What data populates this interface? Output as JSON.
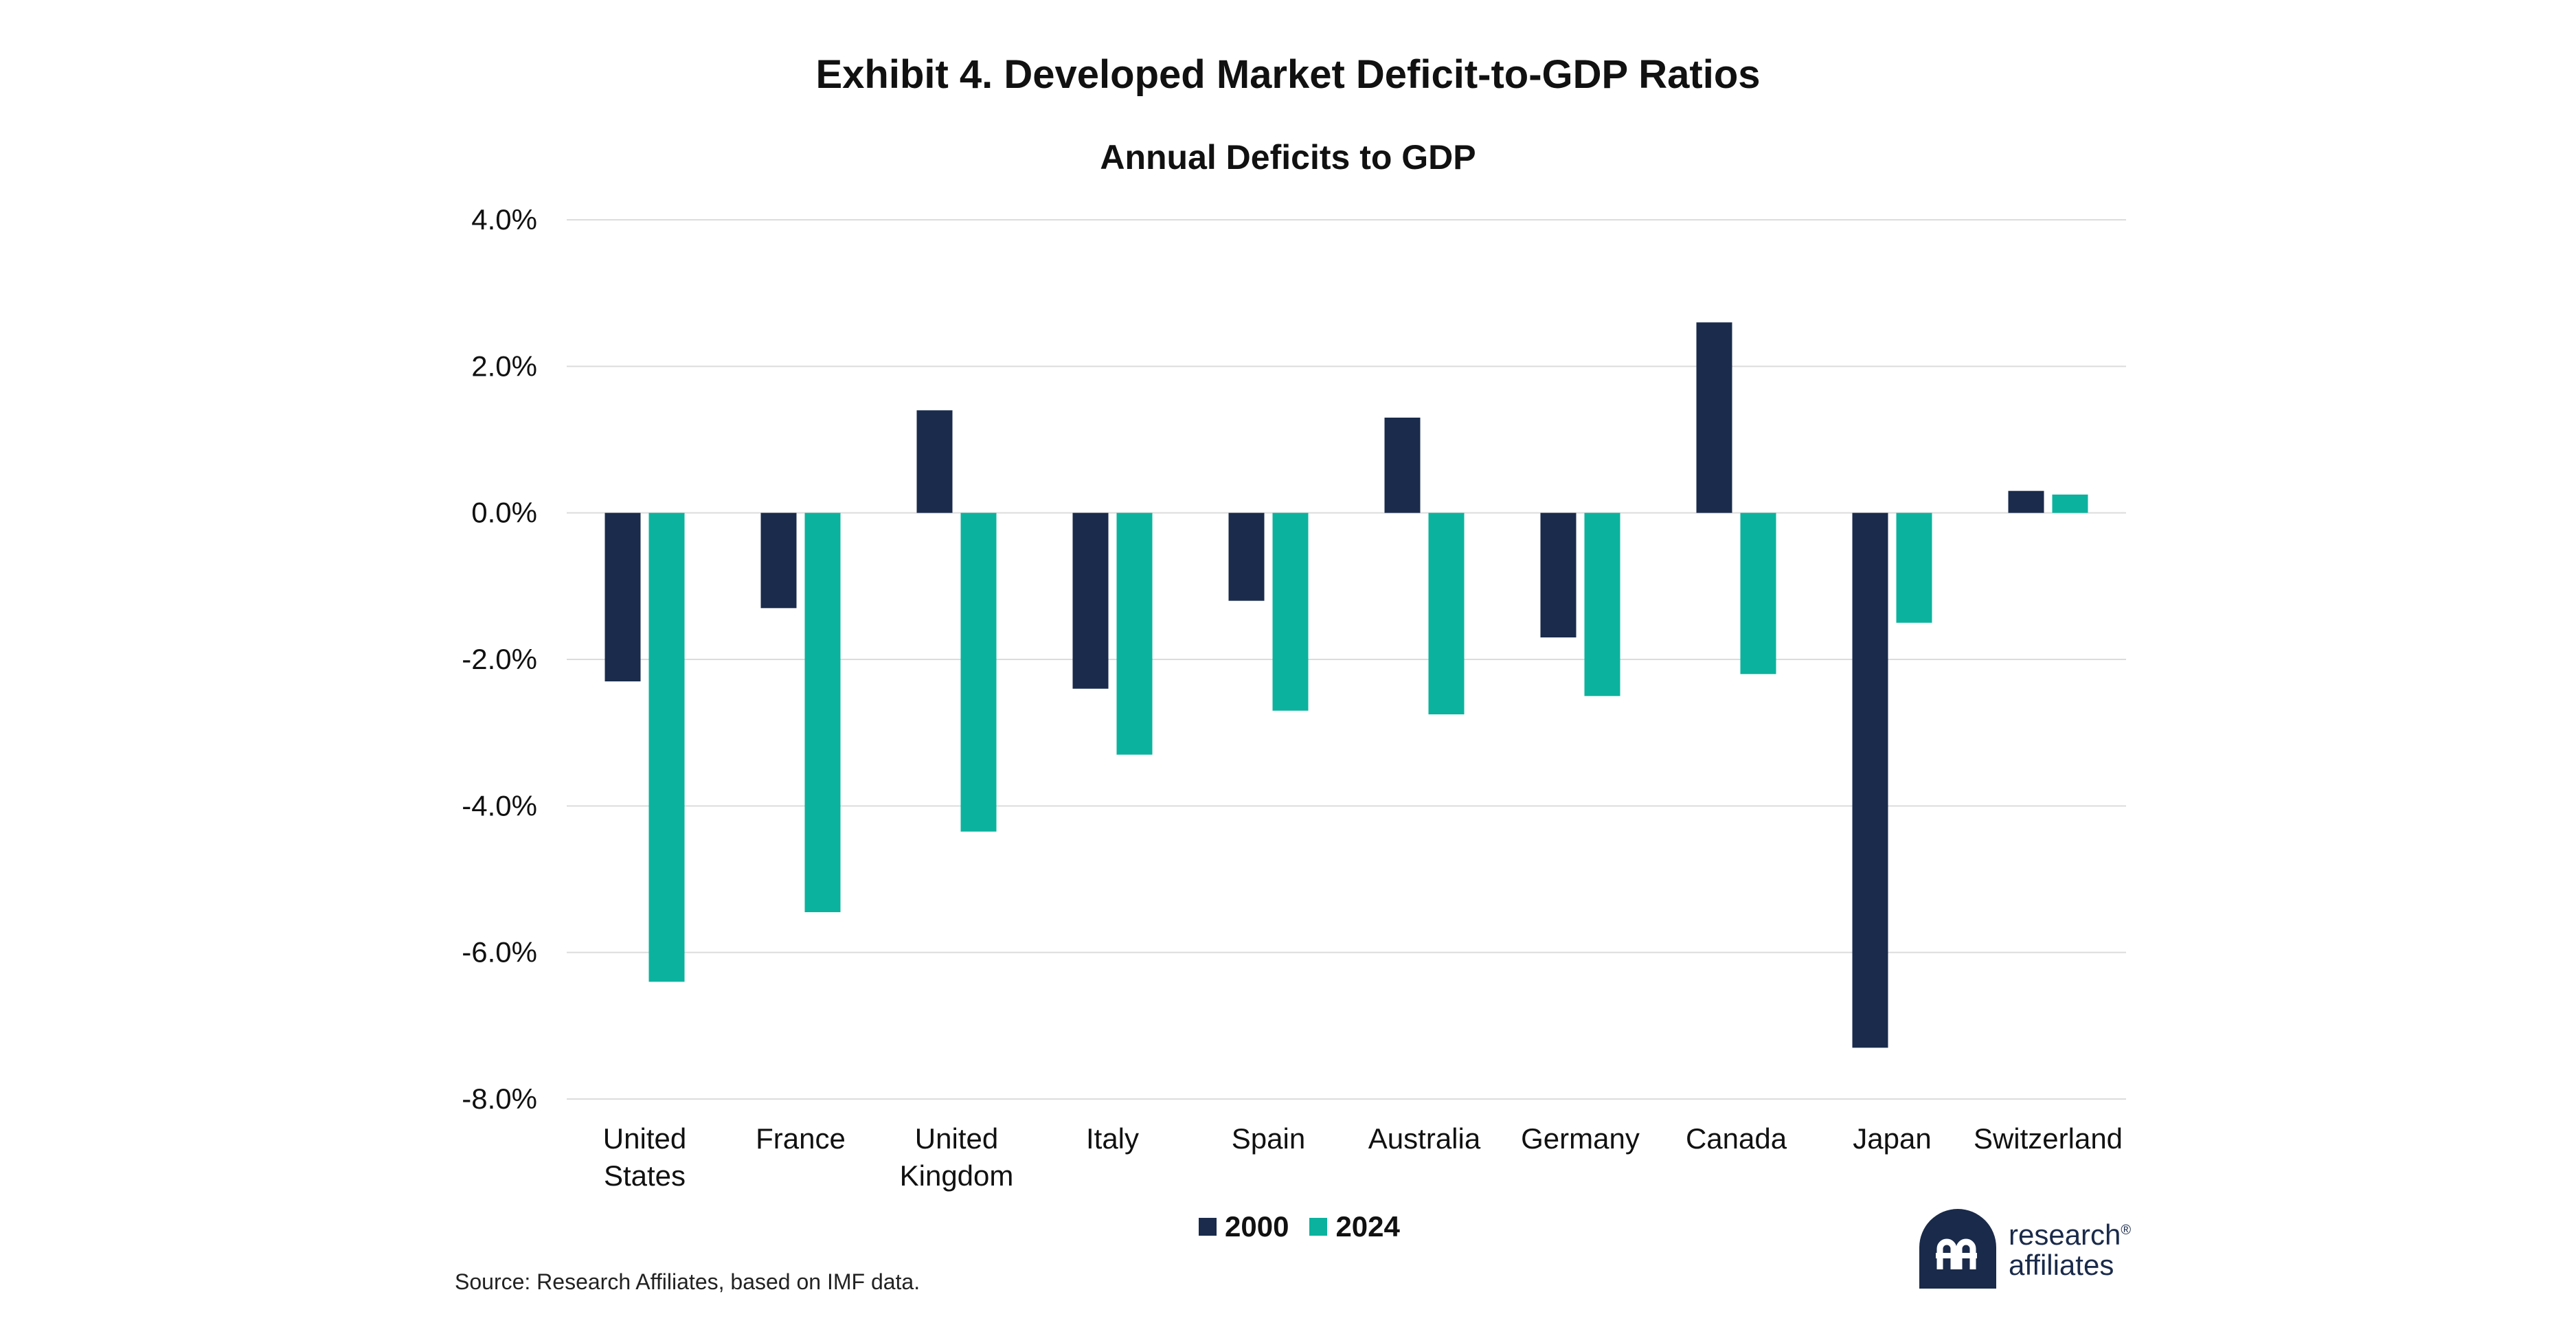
{
  "header": {
    "title": "Exhibit 4. Developed Market Deficit-to-GDP Ratios",
    "subtitle": "Annual Deficits to GDP"
  },
  "chart_data": {
    "type": "bar",
    "title": "Annual Deficits to GDP",
    "xlabel": "",
    "ylabel": "",
    "ylim": [
      -8.0,
      4.0
    ],
    "yticks": [
      4.0,
      2.0,
      0.0,
      -2.0,
      -4.0,
      -6.0,
      -8.0
    ],
    "ytick_labels": [
      "4.0%",
      "2.0%",
      "0.0%",
      "-2.0%",
      "-4.0%",
      "-6.0%",
      "-8.0%"
    ],
    "grid": true,
    "legend_position": "bottom-center",
    "categories": [
      [
        "United",
        "States"
      ],
      [
        "France"
      ],
      [
        "United",
        "Kingdom"
      ],
      [
        "Italy"
      ],
      [
        "Spain"
      ],
      [
        "Australia"
      ],
      [
        "Germany"
      ],
      [
        "Canada"
      ],
      [
        "Japan"
      ],
      [
        "Switzerland"
      ]
    ],
    "series": [
      {
        "name": "2000",
        "color": "#1a2b4c",
        "values": [
          -2.3,
          -1.3,
          1.4,
          -2.4,
          -1.2,
          1.3,
          -1.7,
          2.6,
          -7.3,
          0.3
        ]
      },
      {
        "name": "2024",
        "color": "#0bb39e",
        "values": [
          -6.4,
          -5.45,
          -4.35,
          -3.3,
          -2.7,
          -2.75,
          -2.5,
          -2.2,
          -1.5,
          0.25
        ]
      }
    ]
  },
  "legend": {
    "items": [
      {
        "label": "2000",
        "color": "#1a2b4c"
      },
      {
        "label": "2024",
        "color": "#0bb39e"
      }
    ]
  },
  "footer": {
    "source": "Source: Research Affiliates, based on IMF data.",
    "logo_line1": "research",
    "logo_line2": "affiliates",
    "logo_mark": "®"
  }
}
